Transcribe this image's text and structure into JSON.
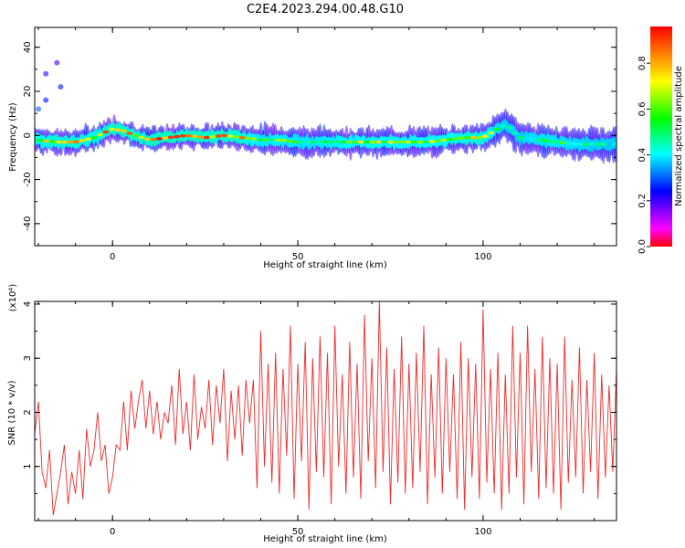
{
  "title": "C2E4.2023.294.00.48.G10",
  "colors": {
    "snr_line": "#ee2a2a",
    "axes": "#000000"
  },
  "chart_data": [
    {
      "type": "heatmap",
      "xlabel": "Height of straight line (km)",
      "ylabel": "Frequency (Hz)",
      "xlim": [
        -21,
        136
      ],
      "ylim": [
        -50,
        49
      ],
      "xticks": [
        0,
        50,
        100
      ],
      "yticks": [
        -40,
        -20,
        0,
        20,
        40
      ],
      "grid": false,
      "colorbar": {
        "label": "Normalized spectral amplitude",
        "range": [
          0.0,
          0.96
        ],
        "ticks": [
          0.0,
          0.2,
          0.4,
          0.6,
          0.8
        ],
        "colormap": [
          "#ff0000",
          "#ff00ff",
          "#0000ff",
          "#00ffff",
          "#00ff00",
          "#ffff00",
          "#ff0000"
        ]
      },
      "ridge": {
        "x": [
          -21,
          -15,
          -10,
          -5,
          0,
          3,
          6,
          10,
          15,
          20,
          25,
          30,
          35,
          40,
          45,
          50,
          55,
          60,
          65,
          70,
          75,
          80,
          85,
          90,
          95,
          100,
          103,
          106,
          110,
          115,
          120,
          125,
          130,
          136
        ],
        "frequency": [
          -2,
          -3,
          -3,
          -1,
          3,
          2,
          0,
          -2,
          -1,
          0,
          -1,
          0,
          -1,
          -2,
          -2,
          -3,
          -3,
          -3,
          -3,
          -3,
          -3,
          -3,
          -3,
          -2,
          -1,
          -1,
          2,
          5,
          -1,
          -2,
          -3,
          -4,
          -4,
          -4
        ],
        "intensity": [
          0.7,
          0.85,
          0.85,
          0.8,
          0.9,
          0.9,
          0.85,
          0.9,
          0.95,
          0.9,
          0.9,
          0.9,
          0.85,
          0.6,
          0.65,
          0.6,
          0.6,
          0.65,
          0.7,
          0.75,
          0.7,
          0.65,
          0.7,
          0.7,
          0.8,
          0.85,
          0.6,
          0.5,
          0.5,
          0.6,
          0.6,
          0.55,
          0.5,
          0.5
        ]
      },
      "outliers": [
        {
          "x": -15,
          "frequency": 33,
          "intensity": 0.2
        },
        {
          "x": -18,
          "frequency": 28,
          "intensity": 0.2
        },
        {
          "x": -14,
          "frequency": 22,
          "intensity": 0.25
        },
        {
          "x": -18,
          "frequency": 16,
          "intensity": 0.25
        },
        {
          "x": -20,
          "frequency": 12,
          "intensity": 0.3
        }
      ]
    },
    {
      "type": "line",
      "xlabel": "Height of straight line (km)",
      "ylabel": "SNR (10 * v/v)",
      "yscale_label": "(x10⁴)",
      "xlim": [
        -21,
        136
      ],
      "ylim": [
        0,
        4.05
      ],
      "xticks": [
        0,
        50,
        100
      ],
      "yticks": [
        1,
        2,
        3,
        4
      ],
      "grid": false,
      "series": [
        {
          "x": [
            -21,
            -20,
            -19,
            -18,
            -17,
            -16,
            -15,
            -14,
            -13,
            -12,
            -11,
            -10,
            -9,
            -8,
            -7,
            -6,
            -5,
            -4,
            -3,
            -2,
            -1,
            0,
            1,
            2,
            3,
            4,
            5,
            6,
            7,
            8,
            9,
            10,
            11,
            12,
            13,
            14,
            15,
            16,
            17,
            18,
            19,
            20,
            21,
            22,
            23,
            24,
            25,
            26,
            27,
            28,
            29,
            30,
            31,
            32,
            33,
            34,
            35,
            36,
            37,
            38,
            39,
            40,
            41,
            42,
            43,
            44,
            45,
            46,
            47,
            48,
            49,
            50,
            51,
            52,
            53,
            54,
            55,
            56,
            57,
            58,
            59,
            60,
            61,
            62,
            63,
            64,
            65,
            66,
            67,
            68,
            69,
            70,
            71,
            72,
            73,
            74,
            75,
            76,
            77,
            78,
            79,
            80,
            81,
            82,
            83,
            84,
            85,
            86,
            87,
            88,
            89,
            90,
            91,
            92,
            93,
            94,
            95,
            96,
            97,
            98,
            99,
            100,
            101,
            102,
            103,
            104,
            105,
            106,
            107,
            108,
            109,
            110,
            111,
            112,
            113,
            114,
            115,
            116,
            117,
            118,
            119,
            120,
            121,
            122,
            123,
            124,
            125,
            126,
            127,
            128,
            129,
            130,
            131,
            132,
            133,
            134,
            135,
            136
          ],
          "y": [
            1.6,
            2.2,
            0.9,
            0.6,
            1.3,
            0.1,
            0.5,
            0.9,
            1.4,
            0.3,
            0.9,
            0.5,
            1.3,
            0.4,
            1.7,
            1.0,
            1.3,
            2.0,
            1.1,
            1.4,
            0.5,
            0.8,
            1.4,
            1.3,
            2.2,
            1.3,
            2.4,
            1.7,
            2.2,
            2.6,
            1.7,
            2.4,
            1.6,
            2.2,
            1.5,
            2.0,
            1.8,
            2.5,
            1.4,
            2.8,
            1.6,
            2.2,
            1.3,
            2.7,
            1.5,
            2.1,
            1.7,
            2.6,
            1.4,
            2.5,
            1.8,
            2.8,
            1.1,
            2.4,
            1.5,
            2.5,
            1.2,
            2.6,
            1.8,
            2.6,
            0.6,
            3.5,
            1.0,
            2.9,
            0.7,
            3.1,
            0.5,
            2.8,
            1.2,
            3.6,
            0.4,
            2.9,
            1.1,
            3.3,
            0.2,
            3.0,
            0.9,
            3.4,
            0.8,
            3.1,
            0.3,
            3.6,
            1.0,
            2.7,
            0.5,
            3.3,
            0.8,
            2.9,
            0.4,
            3.8,
            1.1,
            3.0,
            0.6,
            4.05,
            0.9,
            3.2,
            0.3,
            2.8,
            0.7,
            3.4,
            0.5,
            2.9,
            0.6,
            3.1,
            0.9,
            3.6,
            0.3,
            2.7,
            0.8,
            3.2,
            0.5,
            3.0,
            0.9,
            2.7,
            0.4,
            3.3,
            0.2,
            3.0,
            0.8,
            2.9,
            0.4,
            3.9,
            0.7,
            2.8,
            0.5,
            3.1,
            0.2,
            2.7,
            0.5,
            3.6,
            0.8,
            3.1,
            0.3,
            3.6,
            0.9,
            2.8,
            0.4,
            3.4,
            0.6,
            3.0,
            0.5,
            2.9,
            0.2,
            3.4,
            0.7,
            2.6,
            0.8,
            3.2,
            0.5,
            2.6,
            0.9,
            3.1,
            0.4,
            2.7,
            0.8,
            2.5,
            0.9,
            2.8
          ]
        }
      ]
    }
  ]
}
